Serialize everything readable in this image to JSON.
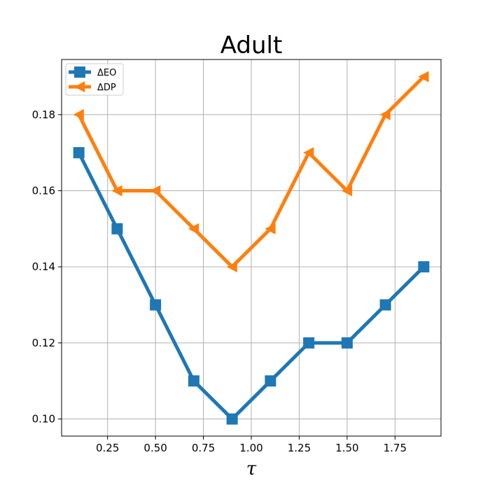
{
  "chart_data": {
    "type": "line",
    "title": "Adult",
    "xlabel": "τ",
    "ylabel": "",
    "x": [
      0.1,
      0.3,
      0.5,
      0.7,
      0.9,
      1.1,
      1.3,
      1.5,
      1.7,
      1.9
    ],
    "xlim": [
      0.01,
      1.99
    ],
    "ylim": [
      0.0955,
      0.1945
    ],
    "xticks": [
      0.25,
      0.5,
      0.75,
      1.0,
      1.25,
      1.5,
      1.75
    ],
    "xtick_labels": [
      "0.25",
      "0.50",
      "0.75",
      "1.00",
      "1.25",
      "1.50",
      "1.75"
    ],
    "yticks": [
      0.1,
      0.12,
      0.14,
      0.16,
      0.18
    ],
    "ytick_labels": [
      "0.10",
      "0.12",
      "0.14",
      "0.16",
      "0.18"
    ],
    "grid": true,
    "legend_position": "top-left",
    "series": [
      {
        "name": "ΔEO",
        "marker": "square",
        "color": "#1f77b4",
        "values": [
          0.17,
          0.15,
          0.13,
          0.11,
          0.1,
          0.11,
          0.12,
          0.12,
          0.13,
          0.14
        ]
      },
      {
        "name": "ΔDP",
        "marker": "triangle-left",
        "color": "#ff7f0e",
        "values": [
          0.18,
          0.16,
          0.16,
          0.15,
          0.14,
          0.15,
          0.17,
          0.16,
          0.18,
          0.19
        ]
      }
    ]
  }
}
